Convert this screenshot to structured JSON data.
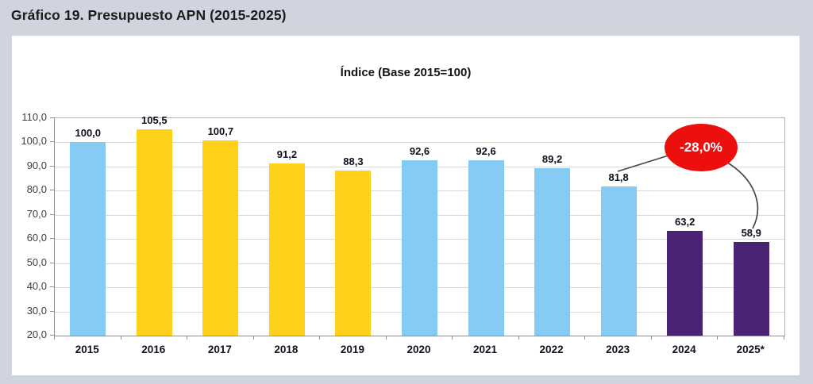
{
  "page": {
    "title": "Gráfico 19. Presupuesto APN (2015-2025)",
    "background_color": "#D0D4DF"
  },
  "chart_data": {
    "type": "bar",
    "title": "Índice (Base 2015=100)",
    "categories": [
      "2015",
      "2016",
      "2017",
      "2018",
      "2019",
      "2020",
      "2021",
      "2022",
      "2023",
      "2024",
      "2025*"
    ],
    "values": [
      100.0,
      105.5,
      100.7,
      91.2,
      88.3,
      92.6,
      92.6,
      89.2,
      81.8,
      63.2,
      58.9
    ],
    "value_labels": [
      "100,0",
      "105,5",
      "100,7",
      "91,2",
      "88,3",
      "92,6",
      "92,6",
      "89,2",
      "81,8",
      "63,2",
      "58,9"
    ],
    "bar_colors": [
      "#85CBF3",
      "#FFD11A",
      "#FFD11A",
      "#FFD11A",
      "#FFD11A",
      "#85CBF3",
      "#85CBF3",
      "#85CBF3",
      "#85CBF3",
      "#4A2473",
      "#4A2473"
    ],
    "palette": {
      "blue": "#85CBF3",
      "yellow": "#FFD11A",
      "purple": "#4A2473"
    },
    "xlabel": "",
    "ylabel": "",
    "ylim": [
      20,
      110
    ],
    "y_ticks": [
      {
        "value": 110,
        "label": "110,0"
      },
      {
        "value": 100,
        "label": "100,0"
      },
      {
        "value": 90,
        "label": "90,0"
      },
      {
        "value": 80,
        "label": "80,0"
      },
      {
        "value": 70,
        "label": "70,0"
      },
      {
        "value": 60,
        "label": "60,0"
      },
      {
        "value": 50,
        "label": "50,0"
      },
      {
        "value": 40,
        "label": "40,0"
      },
      {
        "value": 30,
        "label": "30,0"
      },
      {
        "value": 20,
        "label": "20,0"
      }
    ],
    "grid": true,
    "legend": null,
    "annotation": {
      "label": "-28,0%",
      "fill": "#ED0E0E",
      "text_color": "#FFFFFF",
      "points_to": [
        "2023",
        "2025*"
      ]
    }
  }
}
